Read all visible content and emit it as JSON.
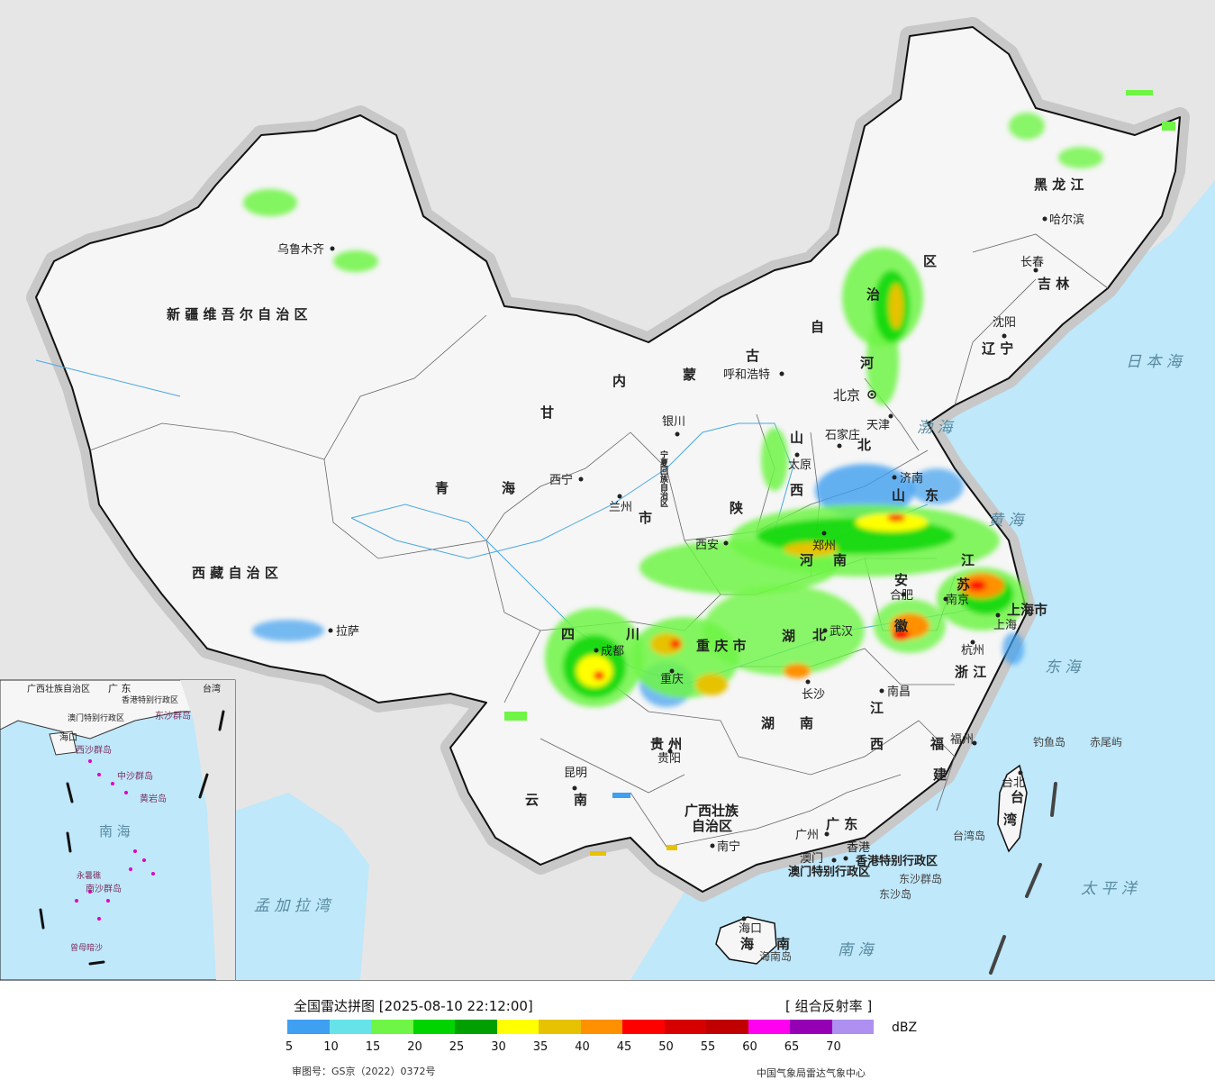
{
  "title": "全国雷达拼图 [2025-08-10 22:12:00]",
  "product": "[ 组合反射率 ]",
  "unit": "dBZ",
  "approval": "审图号：GS京（2022）0372号",
  "producer": "中国气象局雷达气象中心",
  "colors": [
    "#3f9ff0",
    "#66e3e8",
    "#6ef545",
    "#00d400",
    "#00a000",
    "#ffff00",
    "#e6c200",
    "#ff9000",
    "#ff0000",
    "#d60000",
    "#c00000",
    "#ff00f0",
    "#9600b4",
    "#ad90f0"
  ],
  "ticks": [
    "5",
    "10",
    "15",
    "20",
    "25",
    "30",
    "35",
    "40",
    "45",
    "50",
    "55",
    "60",
    "65",
    "70"
  ],
  "regions": {
    "xinjiang": "新 疆 维 吾 尔 自 治 区",
    "xizang": "西 藏 自 治 区",
    "qinghai1": "青",
    "qinghai2": "海",
    "gansu": "甘",
    "neimeng": [
      "内",
      "蒙",
      "古",
      "自",
      "治",
      "区"
    ],
    "heilongjiang": "黑 龙 江",
    "jilin": "吉 林",
    "liaoning": "辽 宁",
    "hebei1": "河",
    "hebei2": "北",
    "shanxi1": "山",
    "shanxi2": "西",
    "shaanxi": "陕",
    "shandong1": "山",
    "shandong2": "东",
    "henan1": "河",
    "henan2": "南",
    "anhui1": "安",
    "anhui2": "徽",
    "jiangsu1": "江",
    "jiangsu2": "苏",
    "hubei1": "湖",
    "hubei2": "北",
    "hunan1": "湖",
    "hunan2": "南",
    "jiangxi1": "江",
    "jiangxi2": "西",
    "zhejiang": "浙 江",
    "fujian1": "福",
    "fujian2": "建",
    "sichuan1": "四",
    "sichuan2": "川",
    "chongqing": "重 庆 市",
    "guizhou": "贵 州",
    "yunnan1": "云",
    "yunnan2": "南",
    "guangxi1": "广西壮族",
    "guangxi2": "自治区",
    "guangdong": "广 东",
    "hainan1": "海",
    "hainan2": "南",
    "taiwan1": "台",
    "taiwan2": "湾",
    "shanghai": "上海市",
    "tianjin_r": "天津",
    "gansu_shi": "市",
    "ningxia": "宁夏回族自治区",
    "xianggang": "香港特别行政区",
    "aomen": "澳门特别行政区"
  },
  "cities": {
    "urumqi": "乌鲁木齐",
    "lhasa": "拉萨",
    "xining": "西宁",
    "lanzhou": "兰州",
    "yinchuan": "银川",
    "hohhot": "呼和浩特",
    "beijing": "北京",
    "tianjin": "天津",
    "shijiazhuang": "石家庄",
    "taiyuan": "太原",
    "jinan": "济南",
    "zhengzhou": "郑州",
    "xian": "西安",
    "chengdu": "成都",
    "chongqing": "重庆",
    "wuhan": "武汉",
    "hefei": "合肥",
    "nanjing": "南京",
    "shanghai": "上海",
    "hangzhou": "杭州",
    "nanchang": "南昌",
    "changsha": "长沙",
    "guiyang": "贵阳",
    "kunming": "昆明",
    "nanning": "南宁",
    "guangzhou": "广州",
    "hongkong": "香港",
    "macao": "澳门",
    "haikou": "海口",
    "fuzhou": "福州",
    "taipei": "台北",
    "shenyang": "沈阳",
    "changchun": "长春",
    "harbin": "哈尔滨"
  },
  "islands": {
    "diaoyu": "钓鱼岛",
    "chiwei": "赤尾屿",
    "dongsha1": "东沙群岛",
    "dongsha2": "东沙岛",
    "hainandao": "海南岛",
    "taiwandao": "台湾岛"
  },
  "seas": {
    "bohai": "渤 海",
    "huanghai": "黄 海",
    "donghai": "东 海",
    "nanhai": "南 海",
    "taipingyang": "太 平 洋",
    "ribenhai": "日 本 海",
    "mengjiala": "孟 加 拉 湾"
  },
  "inset": {
    "nanhai": "南 海",
    "dongsha": "东沙群岛",
    "xisha": "西沙群岛",
    "zhongsha": "中沙群岛",
    "nansha": "南沙群岛",
    "huangyan": "黄岩岛",
    "zengmu": "曾母暗沙",
    "yongshu": "永暑礁",
    "guangdong": "广 东",
    "guangxi": "广西壮族自治区",
    "taiwan": "台湾",
    "hainan": "海口",
    "xianggang": "香港特别行政区",
    "aomen": "澳门特别行政区"
  }
}
